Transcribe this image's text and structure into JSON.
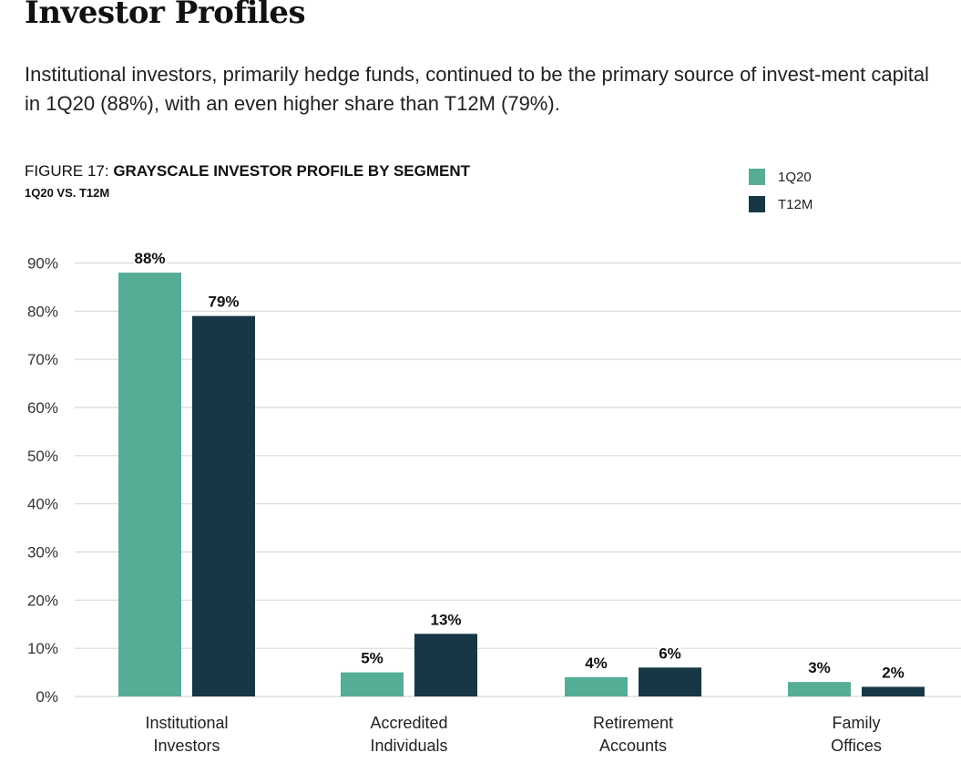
{
  "page": {
    "title": "Investor Profiles",
    "intro": "Institutional investors, primarily hedge funds, continued to be the primary source of invest-ment capital in 1Q20 (88%), with an even higher share than T12M (79%)."
  },
  "figure": {
    "number": "FIGURE 17:",
    "name": "GRAYSCALE INVESTOR PROFILE BY SEGMENT",
    "subtitle": "1Q20 VS. T12M"
  },
  "colors": {
    "series_1q20": "#55ad96",
    "series_t12m": "#173746",
    "grid": "#d8d8d8",
    "axis_text": "#333333",
    "data_label": "#111111"
  },
  "chart_data": {
    "type": "bar",
    "title": "GRAYSCALE INVESTOR PROFILE BY SEGMENT",
    "subtitle": "1Q20 VS. T12M",
    "categories": [
      [
        "Institutional",
        "Investors"
      ],
      [
        "Accredited",
        "Individuals"
      ],
      [
        "Retirement",
        "Accounts"
      ],
      [
        "Family",
        "Offices"
      ]
    ],
    "series": [
      {
        "name": "1Q20",
        "values": [
          88,
          5,
          4,
          3
        ],
        "labels": [
          "88%",
          "5%",
          "4%",
          "3%"
        ]
      },
      {
        "name": "T12M",
        "values": [
          79,
          13,
          6,
          2
        ],
        "labels": [
          "79%",
          "13%",
          "6%",
          "2%"
        ]
      }
    ],
    "ylim": [
      0,
      90
    ],
    "yticks": [
      0,
      10,
      20,
      30,
      40,
      50,
      60,
      70,
      80,
      90
    ],
    "ytick_labels": [
      "0%",
      "10%",
      "20%",
      "30%",
      "40%",
      "50%",
      "60%",
      "70%",
      "80%",
      "90%"
    ],
    "xlabel": "",
    "ylabel": "",
    "grid": true,
    "legend": "top-right"
  }
}
